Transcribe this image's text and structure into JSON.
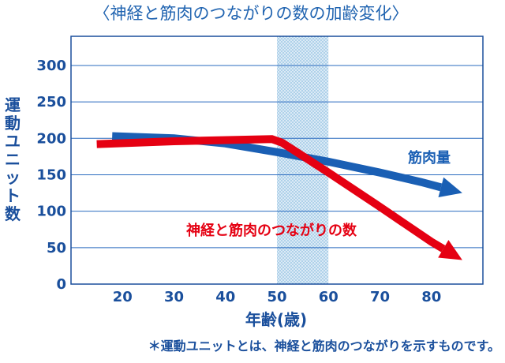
{
  "chart_data": {
    "type": "line",
    "title": "〈神経と筋肉のつながりの数の加齢変化〉",
    "xlabel": "年齢(歳)",
    "ylabel": "運動ユニット数",
    "xticks": [
      "20",
      "30",
      "40",
      "50",
      "60",
      "70",
      "80"
    ],
    "yticks": [
      "0",
      "50",
      "100",
      "150",
      "200",
      "250",
      "300"
    ],
    "xlim": [
      10,
      90
    ],
    "ylim": [
      0,
      340
    ],
    "highlight_band": [
      50,
      60
    ],
    "note": "＊運動ユニットとは、神経と筋肉のつながりを示すものです。",
    "grid": true,
    "series": [
      {
        "name": "筋肉量",
        "color": "#1a5fb4",
        "points": [
          [
            18,
            203
          ],
          [
            30,
            200
          ],
          [
            40,
            193
          ],
          [
            50,
            181
          ],
          [
            60,
            168
          ],
          [
            70,
            153
          ],
          [
            78,
            140
          ],
          [
            86,
            125
          ]
        ]
      },
      {
        "name": "神経と筋肉のつながりの数",
        "color": "#e50012",
        "points": [
          [
            15,
            192
          ],
          [
            30,
            196
          ],
          [
            49,
            199
          ],
          [
            51,
            194
          ],
          [
            60,
            153
          ],
          [
            70,
            106
          ],
          [
            80,
            58
          ],
          [
            86,
            33
          ]
        ]
      }
    ]
  },
  "colors": {
    "axis_text": "#1a4f9c",
    "plot_bg": "#ffffff",
    "grid": "#2a6bbf",
    "band": "#bfd9ee"
  }
}
